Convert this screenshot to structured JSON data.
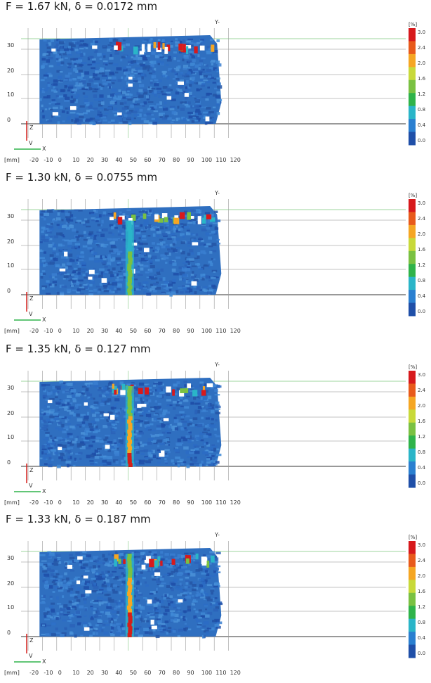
{
  "figure": {
    "panels": [
      {
        "title": "F = 1.67 kN, δ = 0.0172 mm",
        "crack_level": 0.0,
        "crack_length": 0.0
      },
      {
        "title": "F = 1.30 kN, δ = 0.0755 mm",
        "crack_level": 0.55,
        "crack_length": 0.85
      },
      {
        "title": "F = 1.35 kN, δ = 0.127 mm",
        "crack_level": 0.9,
        "crack_length": 0.92
      },
      {
        "title": "F = 1.33 kN, δ = 0.187 mm",
        "crack_level": 1.0,
        "crack_length": 0.95
      }
    ],
    "x_ticks": [
      "-20",
      "-10",
      "0",
      "10",
      "20",
      "30",
      "40",
      "50",
      "60",
      "70",
      "80",
      "90",
      "100",
      "110",
      "120"
    ],
    "y_ticks": [
      "0",
      "10",
      "20",
      "30"
    ],
    "axis_x_label": "X",
    "axis_y_label": "Y-",
    "axis_z_label": "Z",
    "axis_v_label": "V",
    "unit_label": "[mm]",
    "colorbar": {
      "unit": "[%]",
      "ticks": [
        "3.0",
        "2.4",
        "2.0",
        "1.6",
        "1.2",
        "0.8",
        "0.4",
        "0.0"
      ],
      "colors": [
        "#d7191c",
        "#e85a1b",
        "#f5a623",
        "#c8d93a",
        "#7ac142",
        "#2fb34a",
        "#2ab5c8",
        "#2a7fd0",
        "#1f4fa8"
      ]
    },
    "strain_field_color": "#2f6fc0",
    "crack_color": "#d41f1a"
  }
}
